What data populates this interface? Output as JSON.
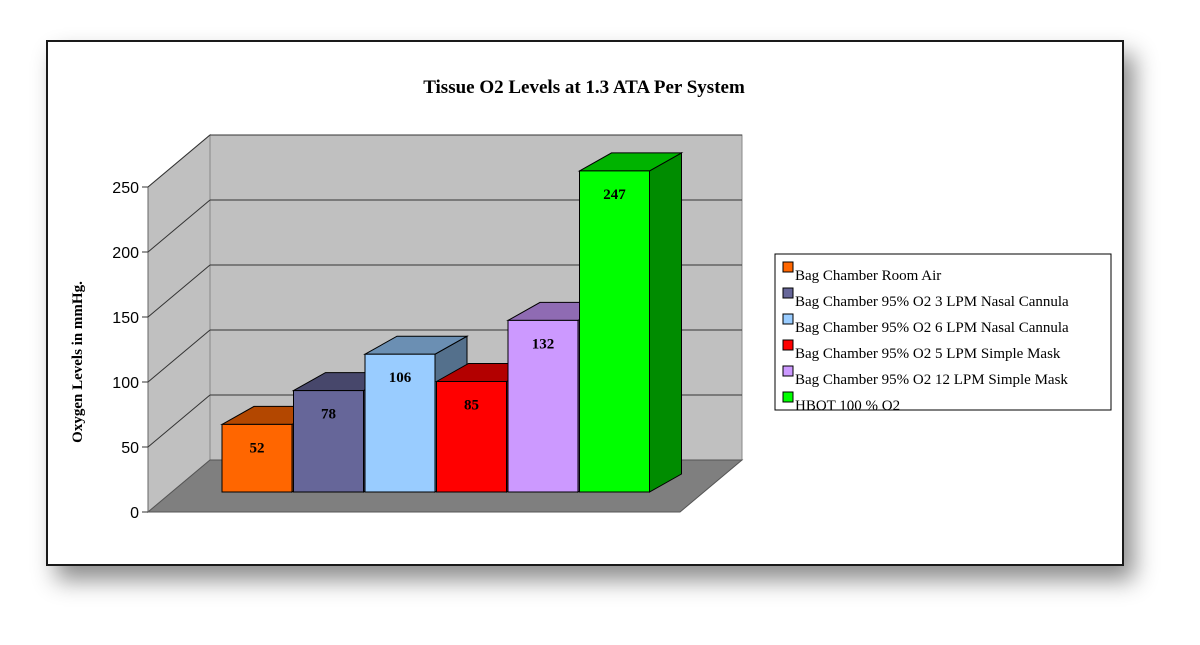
{
  "chart_data": {
    "type": "bar",
    "title": "Tissue O2 Levels at 1.3 ATA Per System",
    "xlabel": "",
    "ylabel": "Oxygen Levels in mmHg.",
    "ylim": [
      0,
      250
    ],
    "yticks": [
      "0",
      "50",
      "100",
      "150",
      "200",
      "250"
    ],
    "grid": true,
    "three_d": true,
    "legend_position": "right",
    "series": [
      {
        "name": "Bag Chamber Room Air",
        "value": 52,
        "label": "52",
        "color": "#ff6600"
      },
      {
        "name": "Bag Chamber 95% O2 3 LPM Nasal Cannula",
        "value": 78,
        "label": "78",
        "color": "#666699"
      },
      {
        "name": "Bag Chamber 95% O2 6 LPM Nasal Cannula",
        "value": 106,
        "label": "106",
        "color": "#99ccff"
      },
      {
        "name": "Bag Chamber 95% O2 5 LPM Simple Mask",
        "value": 85,
        "label": "85",
        "color": "#ff0000"
      },
      {
        "name": "Bag Chamber 95% O2 12 LPM Simple Mask",
        "value": 132,
        "label": "132",
        "color": "#cc99ff"
      },
      {
        "name": "HBOT 100 % O2",
        "value": 247,
        "label": "247",
        "color": "#00ff00"
      }
    ]
  }
}
